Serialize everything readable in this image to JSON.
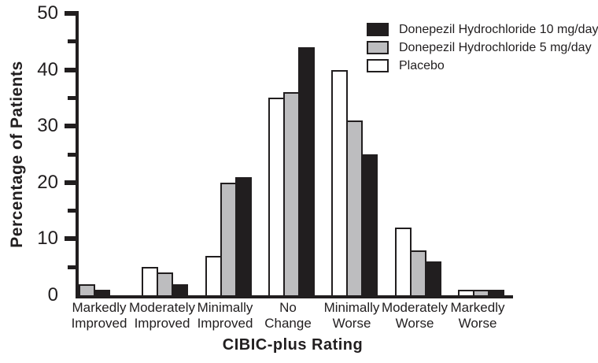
{
  "figure": {
    "background": "#ffffff",
    "outline_color": "#211e1f"
  },
  "chart_data": {
    "type": "bar",
    "title": "",
    "xlabel": "CIBIC-plus Rating",
    "ylabel": "Percentage of Patients",
    "ylim": [
      0,
      50
    ],
    "ytick_labels": [
      "0",
      "10",
      "20",
      "30",
      "40",
      "50"
    ],
    "ytick_minor_step": 5,
    "grid": false,
    "legend_position": "top-right",
    "categories": [
      "Markedly Improved",
      "Moderately Improved",
      "Minimally Improved",
      "No Change",
      "Minimally Worse",
      "Moderately Worse",
      "Markedly Worse"
    ],
    "category_lines": [
      [
        "Markedly",
        "Improved"
      ],
      [
        "Moderately",
        "Improved"
      ],
      [
        "Minimally",
        "Improved"
      ],
      [
        "No",
        "Change"
      ],
      [
        "Minimally",
        "Worse"
      ],
      [
        "Moderately",
        "Worse"
      ],
      [
        "Markedly",
        "Worse"
      ]
    ],
    "series": [
      {
        "name": "Donepezil Hydrochloride 10 mg/day",
        "color": "#211e1f",
        "values": [
          1,
          2,
          21,
          44,
          25,
          6,
          1
        ]
      },
      {
        "name": "Donepezil Hydrochloride 5 mg/day",
        "color": "#bdbdbf",
        "values": [
          2,
          4,
          20,
          36,
          31,
          8,
          1
        ]
      },
      {
        "name": "Placebo",
        "color": "#ffffff",
        "values": [
          0,
          5,
          7,
          35,
          40,
          12,
          1
        ]
      }
    ],
    "bar_draw_order": "Placebo, 5 mg/day, 10 mg/day (left to right within each group)"
  }
}
